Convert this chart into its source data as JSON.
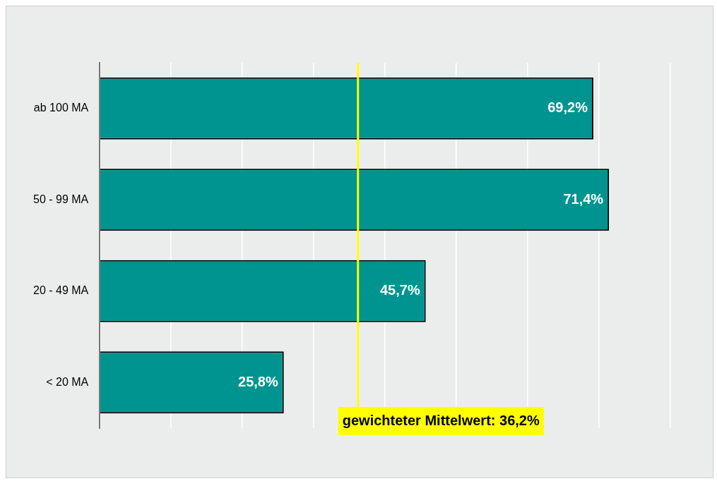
{
  "chart_data": {
    "type": "bar",
    "orientation": "horizontal",
    "categories": [
      "ab 100 MA",
      "50 - 99 MA",
      "20 - 49 MA",
      "< 20 MA"
    ],
    "values": [
      69.2,
      71.4,
      45.7,
      25.8
    ],
    "value_labels": [
      "69,2%",
      "71,4%",
      "45,7%",
      "25,8%"
    ],
    "color": "#009490",
    "ref_lines": [
      {
        "axis": "x",
        "value": 36.2,
        "label": "gewichteter Mittelwert: 36,2%",
        "color": "#ffff00"
      }
    ],
    "grid": "x",
    "tick_labels": "y",
    "legend": false
  }
}
